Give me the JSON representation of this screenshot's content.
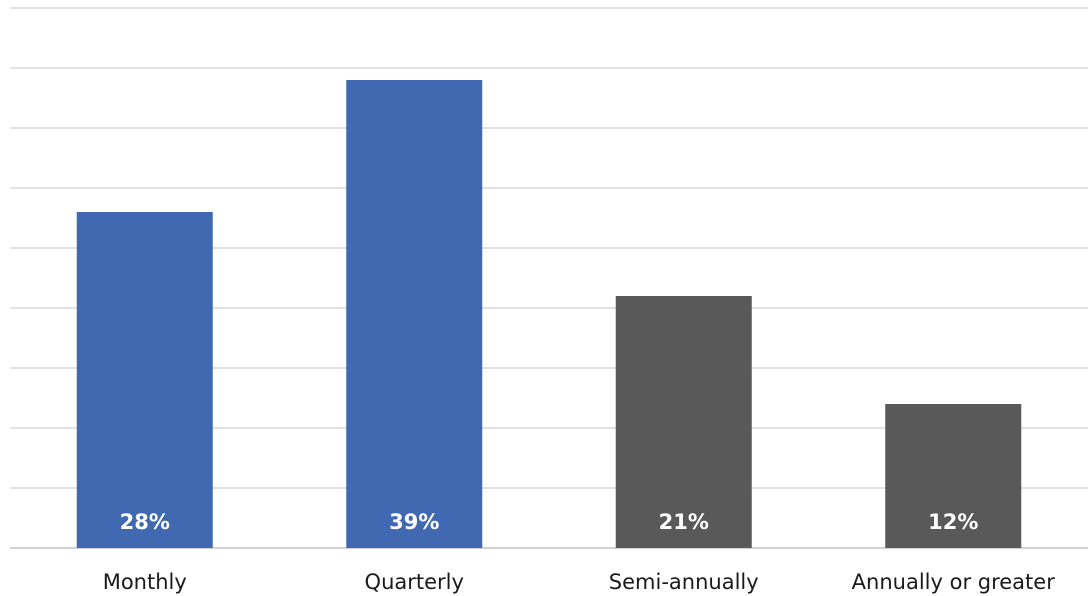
{
  "chart_data": {
    "type": "bar",
    "categories": [
      "Monthly",
      "Quarterly",
      "Semi-annually",
      "Annually or greater"
    ],
    "values": [
      28,
      39,
      21,
      12
    ],
    "value_labels": [
      "28%",
      "39%",
      "21%",
      "12%"
    ],
    "bar_colors": [
      "#4169B2",
      "#4169B2",
      "#595959",
      "#595959"
    ],
    "title": "",
    "xlabel": "",
    "ylabel": "",
    "ylim": [
      0,
      45
    ],
    "grid": true,
    "gridline_step": 5,
    "legend": "none"
  }
}
